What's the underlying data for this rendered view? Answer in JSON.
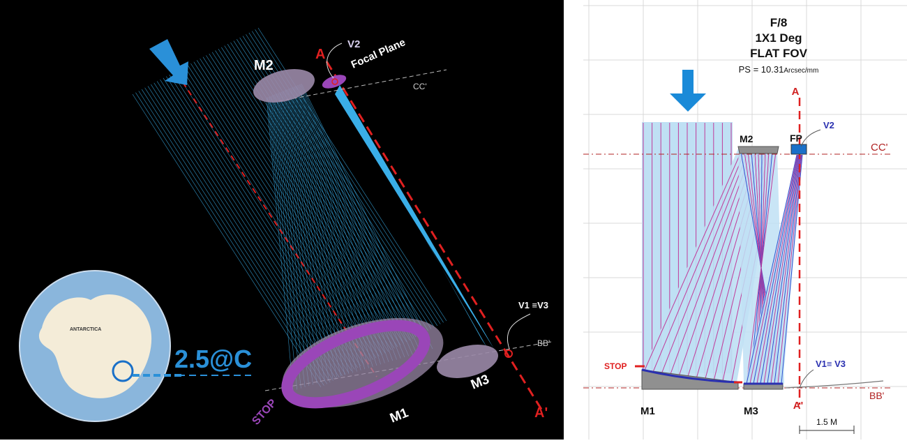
{
  "left": {
    "labels": {
      "m2": "M2",
      "m1": "M1",
      "m3": "M3",
      "stop": "STOP",
      "v2": "V2",
      "focal_plane": "Focal Plane",
      "axis_a": "A",
      "axis_a_prime": "A'",
      "cc": "CC'",
      "bb": "BB'",
      "v1v3": "V1 ≡V3",
      "scale_caption": "2.5@C"
    },
    "map_labels": {
      "continent": "ANTARCTICA"
    },
    "colors": {
      "background": "#000000",
      "rays": "#3aaee8",
      "mirror": "#9b8aa8",
      "stop_ring": "#9a46b8",
      "axis": "#e02020",
      "caption": "#2a90d8",
      "globe_ocean": "#8ab6dc",
      "globe_land": "#f4ecd8"
    },
    "arrow_icon": "down-arrow-icon"
  },
  "right": {
    "header": {
      "line1": "F/8",
      "line2": "1X1 Deg",
      "line3": "FLAT FOV",
      "ps_prefix": "PS = 10.31",
      "ps_unit": "Arcsec/mm"
    },
    "labels": {
      "axis_a": "A",
      "axis_a_prime": "A'",
      "m2": "M2",
      "fp": "FP",
      "v2": "V2",
      "cc": "CC'",
      "stop": "STOP",
      "v1v3": "V1≡ V3",
      "m1": "M1",
      "m3": "M3",
      "bb": "BB'",
      "scale": "1.5 M"
    },
    "colors": {
      "grid": "#d8d8d8",
      "beam_fill": "#bfe0f4",
      "ray": "#c03a9a",
      "ray_alt": "#3050d0",
      "mirror": "#909090",
      "axis": "#e02020",
      "axis_label": "#d02020",
      "v_label": "#2a30b0",
      "arrow": "#1a8ad8"
    },
    "arrow_icon": "down-arrow-icon"
  }
}
